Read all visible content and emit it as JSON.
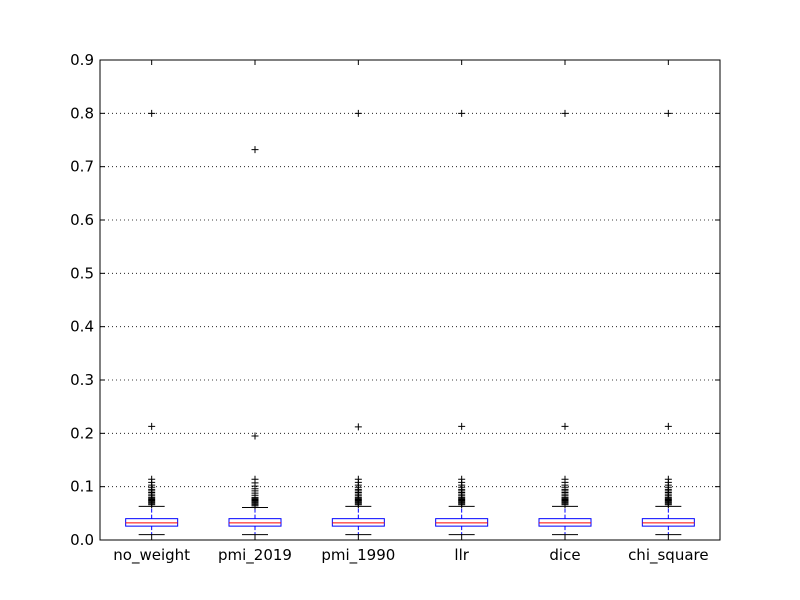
{
  "chart_data": {
    "type": "boxplot",
    "categories": [
      "no_weight",
      "pmi_2019",
      "pmi_1990",
      "llr",
      "dice",
      "chi_square"
    ],
    "ylim": [
      0.0,
      0.9
    ],
    "yticks": [
      "0.0",
      "0.1",
      "0.2",
      "0.3",
      "0.4",
      "0.5",
      "0.6",
      "0.7",
      "0.8",
      "0.9"
    ],
    "grid": "y-dotted",
    "colors": {
      "box": "#0000ff",
      "median": "#ff0000",
      "whisker": "#0000ff",
      "flier": "#000000"
    },
    "series": [
      {
        "whisker_low": 0.01,
        "q1": 0.026,
        "median": 0.032,
        "q3": 0.04,
        "whisker_high": 0.063,
        "fliers": [
          0.066,
          0.068,
          0.07,
          0.072,
          0.074,
          0.076,
          0.078,
          0.08,
          0.083,
          0.086,
          0.089,
          0.092,
          0.095,
          0.099,
          0.103,
          0.108,
          0.114,
          0.213,
          0.8
        ]
      },
      {
        "whisker_low": 0.01,
        "q1": 0.026,
        "median": 0.032,
        "q3": 0.04,
        "whisker_high": 0.061,
        "fliers": [
          0.064,
          0.066,
          0.068,
          0.07,
          0.072,
          0.074,
          0.076,
          0.078,
          0.08,
          0.084,
          0.088,
          0.092,
          0.096,
          0.101,
          0.107,
          0.114,
          0.195,
          0.732
        ]
      },
      {
        "whisker_low": 0.01,
        "q1": 0.026,
        "median": 0.032,
        "q3": 0.04,
        "whisker_high": 0.063,
        "fliers": [
          0.066,
          0.068,
          0.07,
          0.072,
          0.074,
          0.076,
          0.078,
          0.08,
          0.083,
          0.086,
          0.089,
          0.092,
          0.095,
          0.099,
          0.103,
          0.108,
          0.114,
          0.212,
          0.8
        ]
      },
      {
        "whisker_low": 0.01,
        "q1": 0.026,
        "median": 0.032,
        "q3": 0.04,
        "whisker_high": 0.063,
        "fliers": [
          0.066,
          0.068,
          0.07,
          0.072,
          0.074,
          0.076,
          0.078,
          0.08,
          0.083,
          0.086,
          0.089,
          0.092,
          0.095,
          0.099,
          0.103,
          0.108,
          0.114,
          0.213,
          0.8
        ]
      },
      {
        "whisker_low": 0.01,
        "q1": 0.026,
        "median": 0.032,
        "q3": 0.04,
        "whisker_high": 0.063,
        "fliers": [
          0.066,
          0.068,
          0.07,
          0.072,
          0.074,
          0.076,
          0.078,
          0.08,
          0.083,
          0.086,
          0.089,
          0.092,
          0.095,
          0.099,
          0.103,
          0.108,
          0.114,
          0.213,
          0.8
        ]
      },
      {
        "whisker_low": 0.01,
        "q1": 0.026,
        "median": 0.032,
        "q3": 0.04,
        "whisker_high": 0.063,
        "fliers": [
          0.066,
          0.068,
          0.07,
          0.072,
          0.074,
          0.076,
          0.078,
          0.08,
          0.083,
          0.086,
          0.089,
          0.092,
          0.095,
          0.099,
          0.103,
          0.108,
          0.114,
          0.213,
          0.8
        ]
      }
    ]
  }
}
